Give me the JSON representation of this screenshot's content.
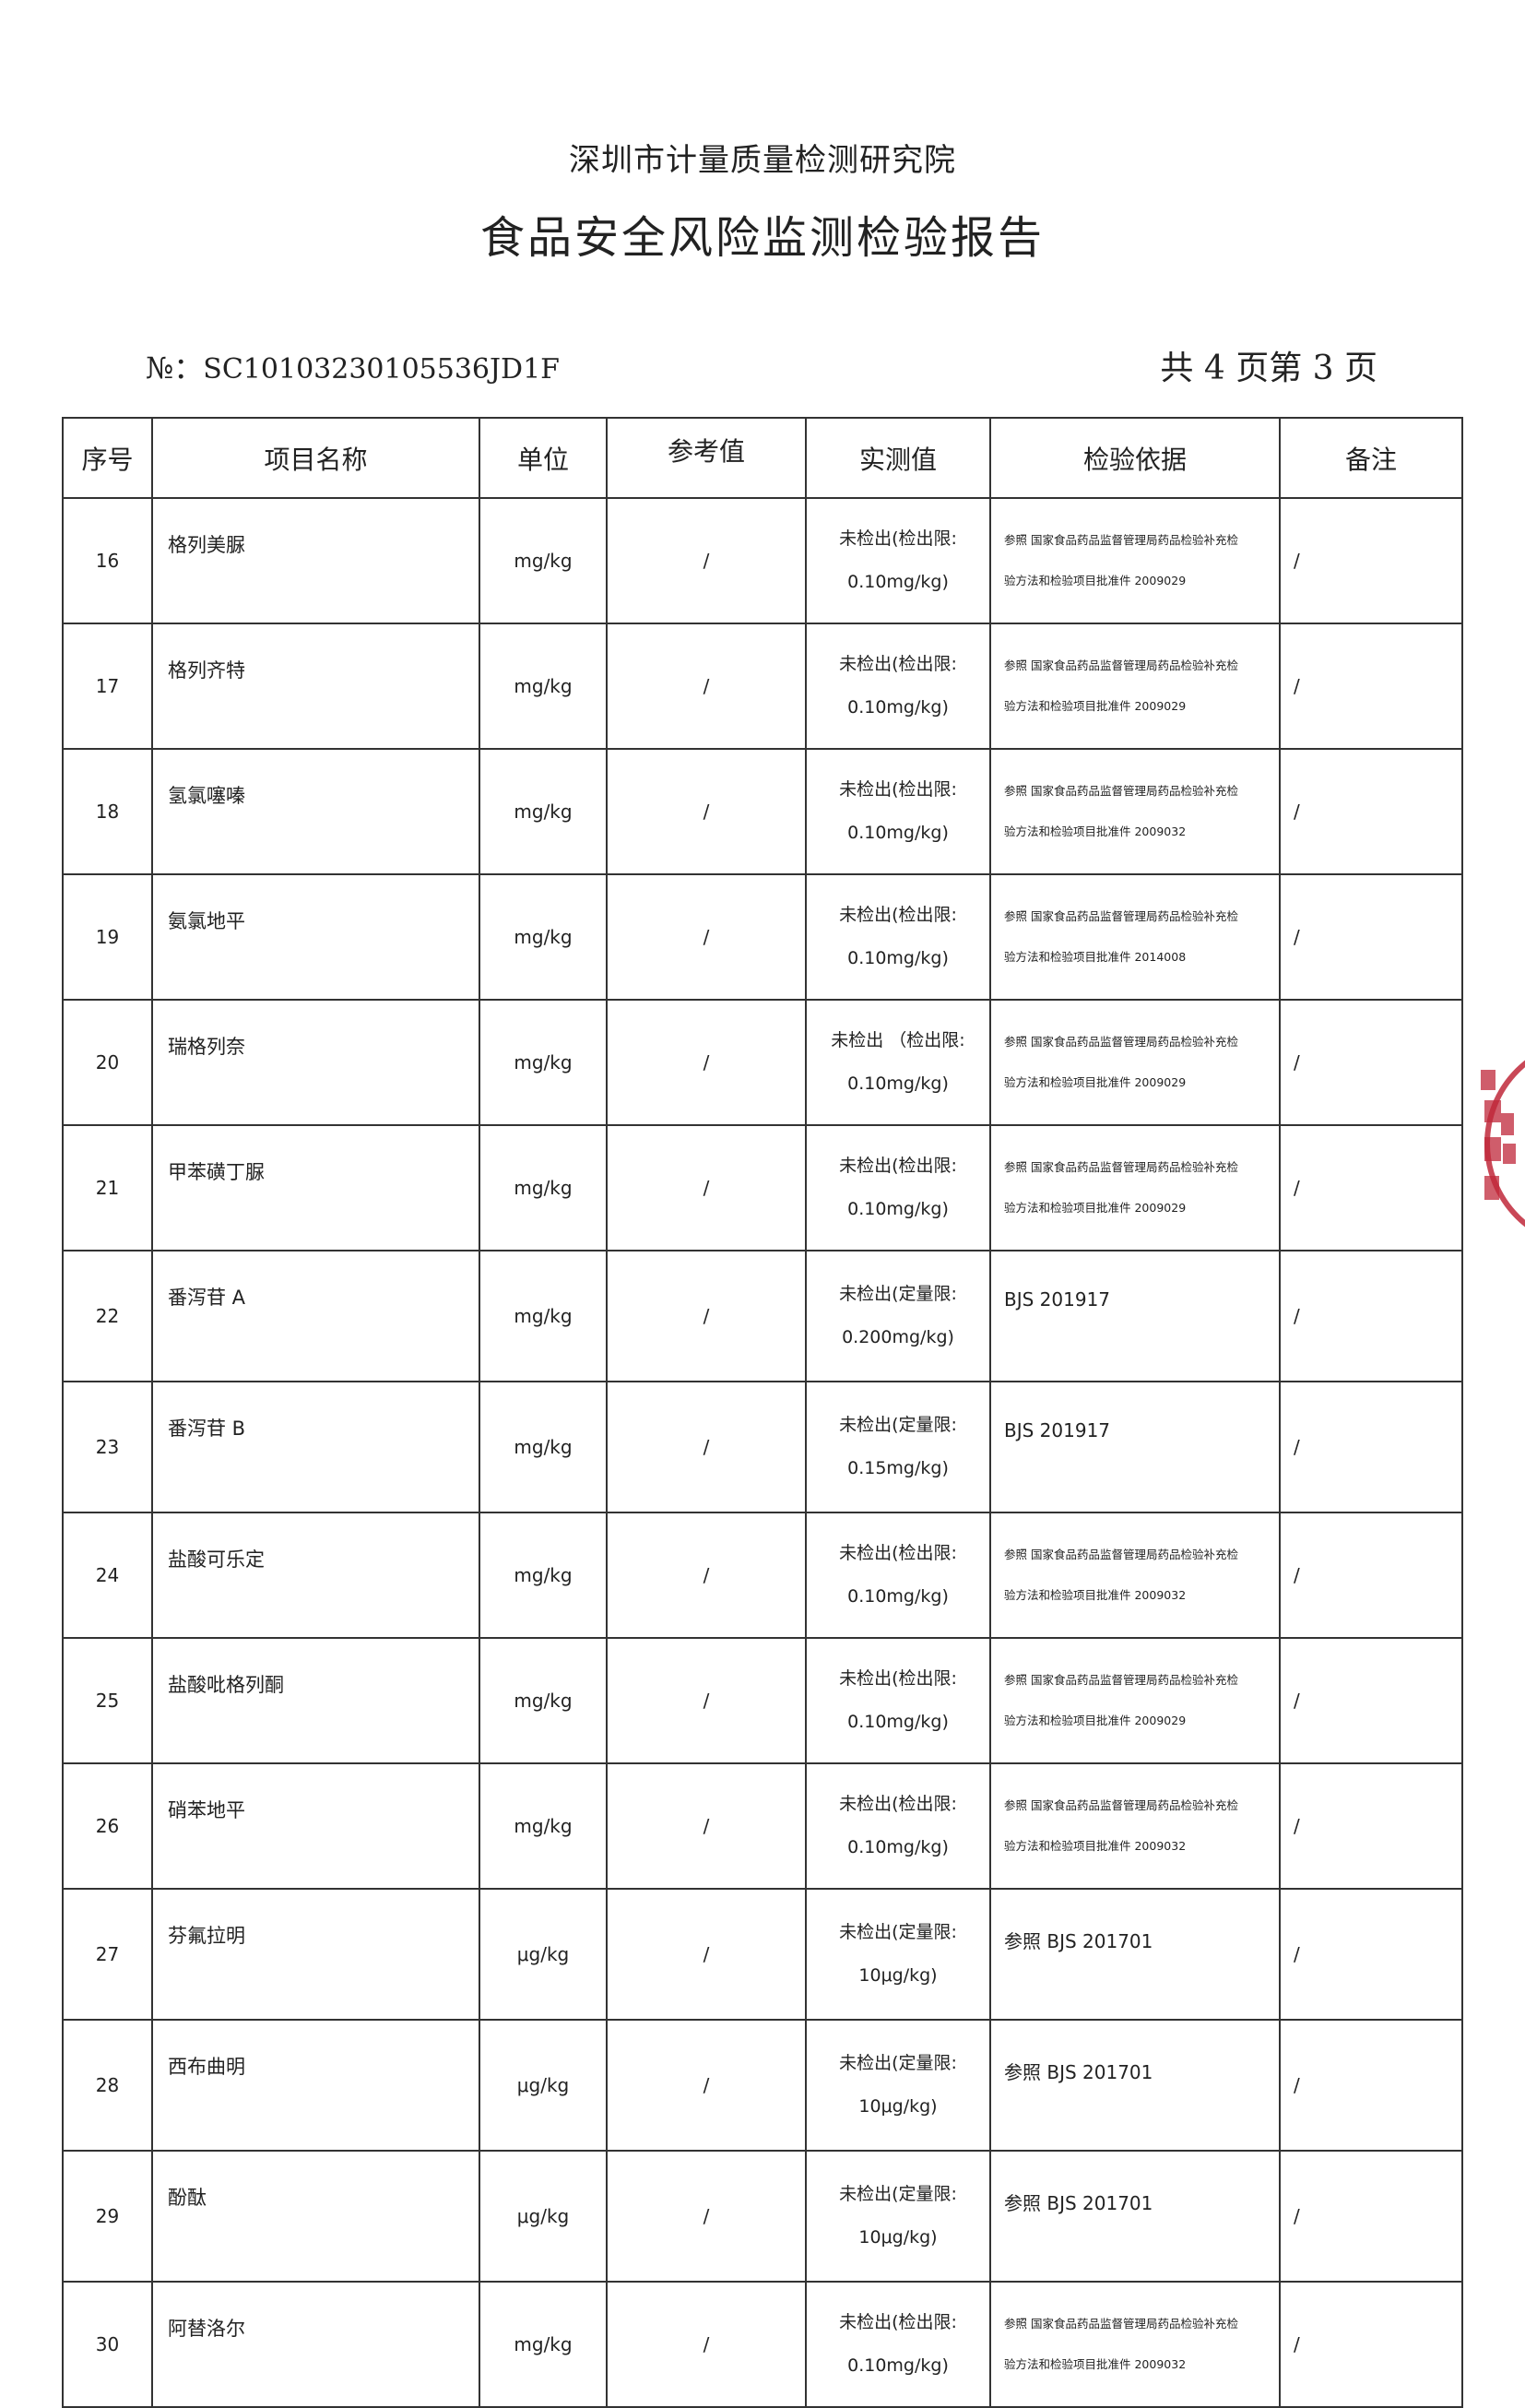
{
  "header": {
    "institution": "深圳市计量质量检测研究院",
    "title": "食品安全风险监测检验报告",
    "report_no_label": "№：",
    "report_no": "SC10103230105536JD1F",
    "page_info": "共 4 页第 3 页"
  },
  "table": {
    "columns": [
      "序号",
      "项目名称",
      "单位",
      "参考值",
      "实测值",
      "检验依据",
      "备注"
    ],
    "rows": [
      {
        "no": "16",
        "name": "格列美脲",
        "unit": "mg/kg",
        "ref": "/",
        "meas1": "未检出(检出限:",
        "meas2": "0.10mg/kg)",
        "basis1": "参照  国家食品药品监督管理局药品检验补充检",
        "basis2": "验方法和检验项目批准件 2009029",
        "remark": "/"
      },
      {
        "no": "17",
        "name": "格列齐特",
        "unit": "mg/kg",
        "ref": "/",
        "meas1": "未检出(检出限:",
        "meas2": "0.10mg/kg)",
        "basis1": "参照  国家食品药品监督管理局药品检验补充检",
        "basis2": "验方法和检验项目批准件 2009029",
        "remark": "/"
      },
      {
        "no": "18",
        "name": "氢氯噻嗪",
        "unit": "mg/kg",
        "ref": "/",
        "meas1": "未检出(检出限:",
        "meas2": "0.10mg/kg)",
        "basis1": "参照  国家食品药品监督管理局药品检验补充检",
        "basis2": "验方法和检验项目批准件 2009032",
        "remark": "/"
      },
      {
        "no": "19",
        "name": "氨氯地平",
        "unit": "mg/kg",
        "ref": "/",
        "meas1": "未检出(检出限:",
        "meas2": "0.10mg/kg)",
        "basis1": "参照  国家食品药品监督管理局药品检验补充检",
        "basis2": "验方法和检验项目批准件 2014008",
        "remark": "/"
      },
      {
        "no": "20",
        "name": "瑞格列奈",
        "unit": "mg/kg",
        "ref": "/",
        "meas1": "未检出 （检出限:",
        "meas2": "0.10mg/kg)",
        "basis1": "参照  国家食品药品监督管理局药品检验补充检",
        "basis2": "验方法和检验项目批准件 2009029",
        "remark": "/"
      },
      {
        "no": "21",
        "name": "甲苯磺丁脲",
        "unit": "mg/kg",
        "ref": "/",
        "meas1": "未检出(检出限:",
        "meas2": "0.10mg/kg)",
        "basis1": "参照  国家食品药品监督管理局药品检验补充检",
        "basis2": "验方法和检验项目批准件 2009029",
        "remark": "/"
      },
      {
        "no": "22",
        "name": "番泻苷 A",
        "unit": "mg/kg",
        "ref": "/",
        "meas1": "未检出(定量限:",
        "meas2": "0.200mg/kg)",
        "basis": "BJS 201917",
        "remark": "/"
      },
      {
        "no": "23",
        "name": "番泻苷 B",
        "unit": "mg/kg",
        "ref": "/",
        "meas1": "未检出(定量限:",
        "meas2": "0.15mg/kg)",
        "basis": "BJS 201917",
        "remark": "/"
      },
      {
        "no": "24",
        "name": "盐酸可乐定",
        "unit": "mg/kg",
        "ref": "/",
        "meas1": "未检出(检出限:",
        "meas2": "0.10mg/kg)",
        "basis1": "参照  国家食品药品监督管理局药品检验补充检",
        "basis2": "验方法和检验项目批准件 2009032",
        "remark": "/"
      },
      {
        "no": "25",
        "name": "盐酸吡格列酮",
        "unit": "mg/kg",
        "ref": "/",
        "meas1": "未检出(检出限:",
        "meas2": "0.10mg/kg)",
        "basis1": "参照  国家食品药品监督管理局药品检验补充检",
        "basis2": "验方法和检验项目批准件 2009029",
        "remark": "/"
      },
      {
        "no": "26",
        "name": "硝苯地平",
        "unit": "mg/kg",
        "ref": "/",
        "meas1": "未检出(检出限:",
        "meas2": "0.10mg/kg)",
        "basis1": "参照  国家食品药品监督管理局药品检验补充检",
        "basis2": "验方法和检验项目批准件 2009032",
        "remark": "/"
      },
      {
        "no": "27",
        "name": "芬氟拉明",
        "unit": "μg/kg",
        "ref": "/",
        "meas1": "未检出(定量限:",
        "meas2": "10μg/kg)",
        "basis": "参照  BJS 201701",
        "remark": "/"
      },
      {
        "no": "28",
        "name": "西布曲明",
        "unit": "μg/kg",
        "ref": "/",
        "meas1": "未检出(定量限:",
        "meas2": "10μg/kg)",
        "basis": "参照  BJS 201701",
        "remark": "/"
      },
      {
        "no": "29",
        "name": "酚酞",
        "unit": "μg/kg",
        "ref": "/",
        "meas1": "未检出(定量限:",
        "meas2": "10μg/kg)",
        "basis": "参照  BJS 201701",
        "remark": "/"
      },
      {
        "no": "30",
        "name": "阿替洛尔",
        "unit": "mg/kg",
        "ref": "/",
        "meas1": "未检出(检出限:",
        "meas2": "0.10mg/kg)",
        "basis1": "参照  国家食品药品监督管理局药品检验补充检",
        "basis2": "验方法和检验项目批准件 2009032",
        "remark": "/"
      }
    ]
  },
  "stamp": {
    "color": "#c0283a"
  }
}
